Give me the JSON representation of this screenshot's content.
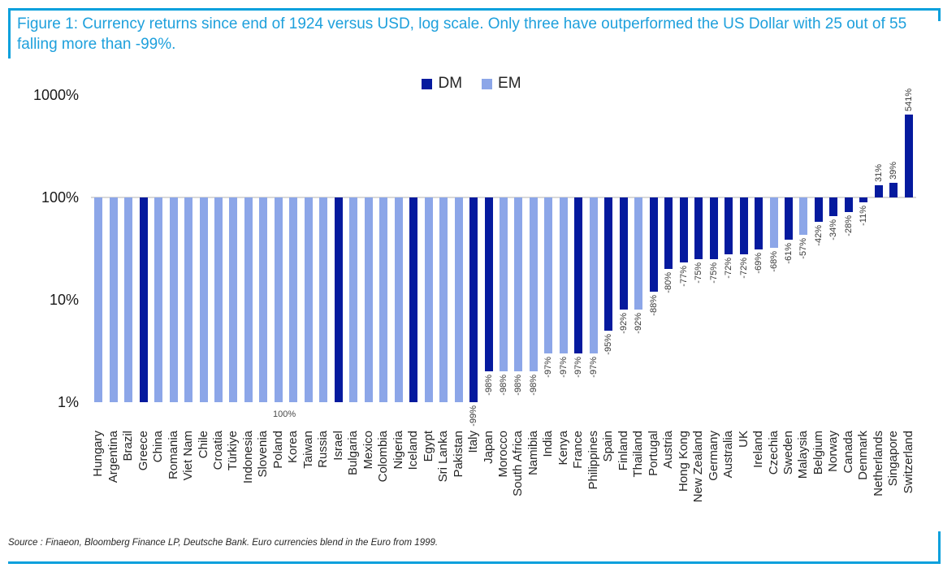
{
  "figure": {
    "title": "Figure 1: Currency returns since end of 1924 versus USD, log scale. Only three have outperformed the US Dollar with 25 out of 55 falling more than -99%.",
    "source": "Source : Finaeon, Bloomberg Finance LP, Deutsche Bank. Euro currencies blend in the Euro from 1999."
  },
  "colors": {
    "accent_cyan": "#1EA0DC",
    "rule_cyan": "#0AA0DC",
    "dm_navy": "#051A9E",
    "em_light_blue": "#8CA6E8",
    "axis_gray": "#D9D9D9"
  },
  "chart_data": {
    "type": "bar",
    "scale_y": "log",
    "title": "Currency returns since end of 1924 versus USD, log scale",
    "xlabel": "",
    "ylabel": "",
    "ylim_pct": [
      1,
      1000
    ],
    "grid": "baseline-only",
    "legend_position": "top-center",
    "yticks": [
      {
        "label": "1000%",
        "value": 1000
      },
      {
        "label": "100%",
        "value": 100
      },
      {
        "label": "10%",
        "value": 10
      },
      {
        "label": "1%",
        "value": 1
      }
    ],
    "legend": [
      {
        "label": "DM",
        "color": "#051A9E"
      },
      {
        "label": "EM",
        "color": "#8CA6E8"
      }
    ],
    "annotation": {
      "text": "100%"
    },
    "bars": [
      {
        "country": "Hungary",
        "group": "EM",
        "level_pct": 1,
        "label": ""
      },
      {
        "country": "Argentina",
        "group": "EM",
        "level_pct": 1,
        "label": ""
      },
      {
        "country": "Brazil",
        "group": "EM",
        "level_pct": 1,
        "label": ""
      },
      {
        "country": "Greece",
        "group": "DM",
        "level_pct": 1,
        "label": ""
      },
      {
        "country": "China",
        "group": "EM",
        "level_pct": 1,
        "label": ""
      },
      {
        "country": "Romania",
        "group": "EM",
        "level_pct": 1,
        "label": ""
      },
      {
        "country": "Viet Nam",
        "group": "EM",
        "level_pct": 1,
        "label": ""
      },
      {
        "country": "Chile",
        "group": "EM",
        "level_pct": 1,
        "label": ""
      },
      {
        "country": "Croatia",
        "group": "EM",
        "level_pct": 1,
        "label": ""
      },
      {
        "country": "Türkiye",
        "group": "EM",
        "level_pct": 1,
        "label": ""
      },
      {
        "country": "Indonesia",
        "group": "EM",
        "level_pct": 1,
        "label": ""
      },
      {
        "country": "Slovenia",
        "group": "EM",
        "level_pct": 1,
        "label": ""
      },
      {
        "country": "Poland",
        "group": "EM",
        "level_pct": 1,
        "label": ""
      },
      {
        "country": "Korea",
        "group": "EM",
        "level_pct": 1,
        "label": ""
      },
      {
        "country": "Taiwan",
        "group": "EM",
        "level_pct": 1,
        "label": ""
      },
      {
        "country": "Russia",
        "group": "EM",
        "level_pct": 1,
        "label": ""
      },
      {
        "country": "Israel",
        "group": "DM",
        "level_pct": 1,
        "label": ""
      },
      {
        "country": "Bulgaria",
        "group": "EM",
        "level_pct": 1,
        "label": ""
      },
      {
        "country": "Mexico",
        "group": "EM",
        "level_pct": 1,
        "label": ""
      },
      {
        "country": "Colombia",
        "group": "EM",
        "level_pct": 1,
        "label": ""
      },
      {
        "country": "Nigeria",
        "group": "EM",
        "level_pct": 1,
        "label": ""
      },
      {
        "country": "Iceland",
        "group": "DM",
        "level_pct": 1,
        "label": ""
      },
      {
        "country": "Egypt",
        "group": "EM",
        "level_pct": 1,
        "label": ""
      },
      {
        "country": "Sri Lanka",
        "group": "EM",
        "level_pct": 1,
        "label": ""
      },
      {
        "country": "Pakistan",
        "group": "EM",
        "level_pct": 1,
        "label": ""
      },
      {
        "country": "Italy",
        "group": "DM",
        "level_pct": 1,
        "label": "-99%"
      },
      {
        "country": "Japan",
        "group": "DM",
        "level_pct": 2,
        "label": "-98%"
      },
      {
        "country": "Morocco",
        "group": "EM",
        "level_pct": 2,
        "label": "-98%"
      },
      {
        "country": "South Africa",
        "group": "EM",
        "level_pct": 2,
        "label": "-98%"
      },
      {
        "country": "Namibia",
        "group": "EM",
        "level_pct": 2,
        "label": "-98%"
      },
      {
        "country": "India",
        "group": "EM",
        "level_pct": 3,
        "label": "-97%"
      },
      {
        "country": "Kenya",
        "group": "EM",
        "level_pct": 3,
        "label": "-97%"
      },
      {
        "country": "France",
        "group": "DM",
        "level_pct": 3,
        "label": "-97%"
      },
      {
        "country": "Philippines",
        "group": "EM",
        "level_pct": 3,
        "label": "-97%"
      },
      {
        "country": "Spain",
        "group": "DM",
        "level_pct": 5,
        "label": "-95%"
      },
      {
        "country": "Finland",
        "group": "DM",
        "level_pct": 8,
        "label": "-92%"
      },
      {
        "country": "Thailand",
        "group": "EM",
        "level_pct": 8,
        "label": "-92%"
      },
      {
        "country": "Portugal",
        "group": "DM",
        "level_pct": 12,
        "label": "-88%"
      },
      {
        "country": "Austria",
        "group": "DM",
        "level_pct": 20,
        "label": "-80%"
      },
      {
        "country": "Hong Kong",
        "group": "DM",
        "level_pct": 23,
        "label": "-77%"
      },
      {
        "country": "New Zealand",
        "group": "DM",
        "level_pct": 25,
        "label": "-75%"
      },
      {
        "country": "Germany",
        "group": "DM",
        "level_pct": 25,
        "label": "-75%"
      },
      {
        "country": "Australia",
        "group": "DM",
        "level_pct": 28,
        "label": "-72%"
      },
      {
        "country": "UK",
        "group": "DM",
        "level_pct": 28,
        "label": "-72%"
      },
      {
        "country": "Ireland",
        "group": "DM",
        "level_pct": 31,
        "label": "-69%"
      },
      {
        "country": "Czechia",
        "group": "EM",
        "level_pct": 32,
        "label": "-68%"
      },
      {
        "country": "Sweden",
        "group": "DM",
        "level_pct": 39,
        "label": "-61%"
      },
      {
        "country": "Malaysia",
        "group": "EM",
        "level_pct": 43,
        "label": "-57%"
      },
      {
        "country": "Belgium",
        "group": "DM",
        "level_pct": 58,
        "label": "-42%"
      },
      {
        "country": "Norway",
        "group": "DM",
        "level_pct": 66,
        "label": "-34%"
      },
      {
        "country": "Canada",
        "group": "DM",
        "level_pct": 72,
        "label": "-28%"
      },
      {
        "country": "Denmark",
        "group": "DM",
        "level_pct": 89,
        "label": "-11%"
      },
      {
        "country": "Netherlands",
        "group": "DM",
        "level_pct": 131,
        "label": "31%"
      },
      {
        "country": "Singapore",
        "group": "DM",
        "level_pct": 139,
        "label": "39%"
      },
      {
        "country": "Switzerland",
        "group": "DM",
        "level_pct": 641,
        "label": "541%"
      }
    ]
  }
}
